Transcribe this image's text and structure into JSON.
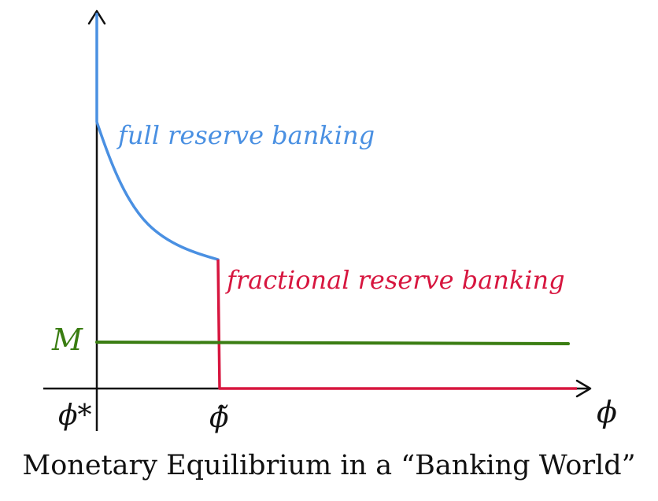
{
  "diagram": {
    "curve_labels": {
      "full_reserve": "full reserve banking",
      "fractional_reserve": "fractional reserve banking"
    },
    "axis_labels": {
      "x_axis": "ϕ",
      "origin_tick": "ϕ*",
      "threshold_tick": "ϕ̃",
      "money_level": "M"
    },
    "caption": "Monetary Equilibrium in a “Banking World”"
  },
  "colors": {
    "axis": "#111111",
    "full_reserve_curve": "#4a90e2",
    "fractional_reserve_curve": "#d7163f",
    "money_line": "#3a7d12"
  }
}
